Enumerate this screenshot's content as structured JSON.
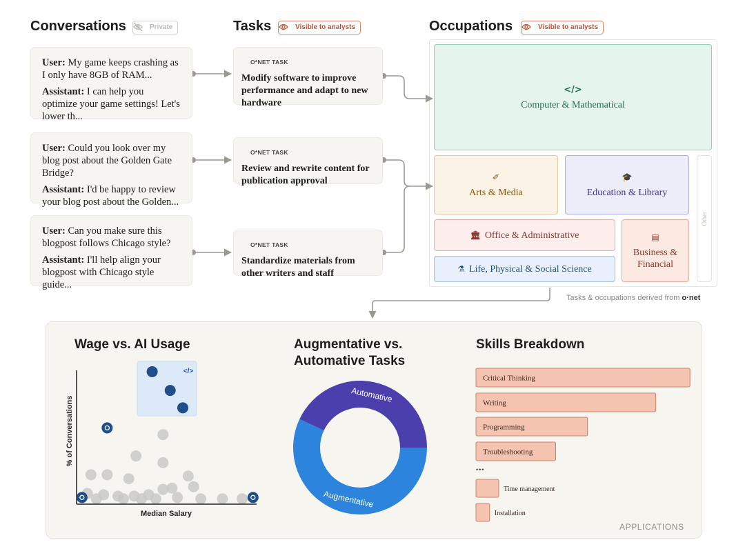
{
  "conversations": {
    "title": "Conversations",
    "badge": "Private",
    "items": [
      {
        "user_label": "User:",
        "user": "My game keeps crashing as I only have 8GB of RAM...",
        "assistant_label": "Assistant:",
        "assistant": "I can help you optimize your game settings! Let's lower th..."
      },
      {
        "user_label": "User:",
        "user": "Could you look over my blog post about the Golden Gate Bridge?",
        "assistant_label": "Assistant:",
        "assistant": "I'd be happy to review your blog post about the Golden..."
      },
      {
        "user_label": "User:",
        "user": "Can you make sure this blogpost follows Chicago style?",
        "assistant_label": "Assistant:",
        "assistant": "I'll help align your blogpost with Chicago style guide..."
      }
    ]
  },
  "tasks": {
    "title": "Tasks",
    "badge": "Visible to analysts",
    "items": [
      {
        "kicker": "O*NET TASK",
        "text": "Modify software to improve performance and adapt to new hardware"
      },
      {
        "kicker": "O*NET TASK",
        "text": "Review and rewrite content for publication approval"
      },
      {
        "kicker": "O*NET TASK",
        "text": "Standardize materials from other writers and staff"
      }
    ]
  },
  "occupations": {
    "title": "Occupations",
    "badge": "Visible to analysts",
    "items": [
      "Computer & Mathematical",
      "Arts & Media",
      "Education & Library",
      "Office & Administrative",
      "Business & Financial",
      "Life, Physical & Social Science"
    ],
    "other": "Other",
    "footnote": "Tasks & occupations derived from",
    "source": "o·net"
  },
  "wage_chart": {
    "type": "scatter",
    "title": "Wage vs. AI Usage",
    "x_label": "Median Salary",
    "y_label": "% of Conversations",
    "xlim": [
      0,
      100
    ],
    "ylim": [
      0,
      100
    ],
    "points": {
      "color": "#c9c9c6",
      "x": [
        48,
        33,
        48,
        8,
        17,
        29,
        62,
        53,
        65,
        6,
        15,
        23,
        32,
        40,
        48,
        56,
        69,
        81,
        92,
        11,
        26,
        44,
        36
      ],
      "y": [
        52,
        36,
        31,
        22,
        22,
        19,
        21,
        12,
        13,
        8,
        7,
        6,
        6,
        7,
        11,
        5,
        4,
        4,
        4,
        4,
        4,
        4,
        4
      ]
    },
    "highlight": {
      "color": "#1f4e8a",
      "x": [
        42,
        52,
        59
      ],
      "y": [
        99,
        85,
        72
      ]
    },
    "icons": {
      "color": "#1f4e8a",
      "x": [
        17,
        3,
        98
      ],
      "y": [
        57,
        5,
        5
      ]
    }
  },
  "task_chart": {
    "type": "donut",
    "title": "Augmentative vs. Automative Tasks",
    "categories": [
      "Automative",
      "Augmentative"
    ],
    "values": [
      43,
      57
    ],
    "colors": [
      "#4b3fae",
      "#2c84dc"
    ]
  },
  "skills_chart": {
    "type": "bar",
    "title": "Skills Breakdown",
    "categories": [
      "Critical Thinking",
      "Writing",
      "Programming",
      "Troubleshooting",
      "Time management",
      "Installation"
    ],
    "values": [
      94,
      79,
      49,
      35,
      10,
      6
    ],
    "xlim": [
      0,
      100
    ],
    "color": "#f5c4b0",
    "ellipsis": "•••"
  },
  "footer": "APPLICATIONS"
}
